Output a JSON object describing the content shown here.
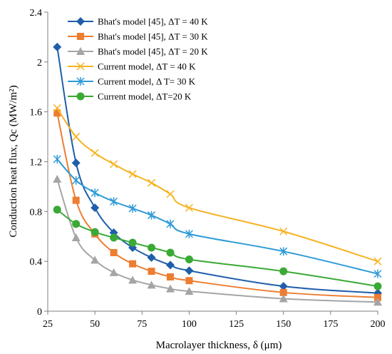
{
  "chart_data": {
    "type": "line",
    "title": "",
    "xlabel": "Macrolayer thickness, δ (μm)",
    "ylabel": "Conduction heat flux, Qc (MW/m²)",
    "xlim": [
      25,
      200
    ],
    "ylim": [
      0,
      2.4
    ],
    "xticks": [
      "25",
      "50",
      "75",
      "100",
      "125",
      "150",
      "175",
      "200"
    ],
    "yticks": [
      "0",
      "0.4",
      "0.8",
      "1.2",
      "1.6",
      "2",
      "2.4"
    ],
    "grid": false,
    "legend_position": "top-right",
    "x": [
      30,
      40,
      50,
      60,
      70,
      80,
      90,
      100,
      150,
      200
    ],
    "series": [
      {
        "name": "Bhat's model [45], ΔT = 40 K",
        "color": "#1f5eaa",
        "marker": "diamond",
        "values": [
          2.12,
          1.19,
          0.83,
          0.63,
          0.51,
          0.43,
          0.37,
          0.325,
          0.2,
          0.145
        ]
      },
      {
        "name": "Bhat's model [45], ΔT = 30 K",
        "color": "#ed7d31",
        "marker": "square",
        "values": [
          1.59,
          0.89,
          0.62,
          0.47,
          0.38,
          0.32,
          0.275,
          0.245,
          0.15,
          0.11
        ]
      },
      {
        "name": "Bhat's model [45],  ΔT = 20 K",
        "color": "#a5a5a5",
        "marker": "triangle",
        "values": [
          1.06,
          0.59,
          0.41,
          0.31,
          0.25,
          0.21,
          0.18,
          0.16,
          0.1,
          0.073
        ]
      },
      {
        "name": "Current model, ΔT =  40 K",
        "color": "#f5b323",
        "marker": "x",
        "values": [
          1.63,
          1.4,
          1.27,
          1.18,
          1.1,
          1.03,
          0.94,
          0.83,
          0.64,
          0.4
        ]
      },
      {
        "name": "Current model, Δ T= 30 K",
        "color": "#2e9bd6",
        "marker": "asterisk",
        "values": [
          1.22,
          1.05,
          0.95,
          0.88,
          0.825,
          0.77,
          0.7,
          0.62,
          0.48,
          0.3
        ]
      },
      {
        "name": "Current model, ΔT=20 K",
        "color": "#3aa935",
        "marker": "circle",
        "values": [
          0.815,
          0.7,
          0.635,
          0.59,
          0.55,
          0.51,
          0.47,
          0.415,
          0.32,
          0.2
        ]
      }
    ]
  }
}
